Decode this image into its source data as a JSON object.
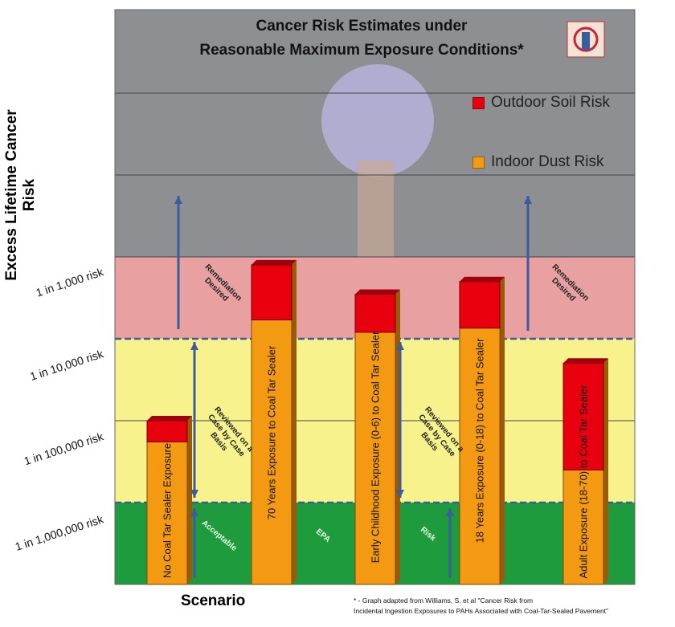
{
  "chart_data": {
    "type": "bar",
    "title_line1": "Cancer Risk Estimates under",
    "title_line2": "Reasonable Maximum Exposure Conditions*",
    "ylabel": "Excess Lifetime Cancer Risk",
    "xlabel": "Scenario",
    "y_scale": "log",
    "yticks": [
      "1 in 1,000 risk",
      "1 in 10,000 risk",
      "1 in 100,000 risk",
      "1 in 1,000,000 risk"
    ],
    "legend": [
      {
        "label": "Outdoor Soil Risk",
        "color": "#e8000e"
      },
      {
        "label": "Indoor Dust Risk",
        "color": "#f39a12"
      }
    ],
    "categories": [
      "No Coal Tar Sealer Exposure",
      "70 Years Exposure to Coal Tar Sealer",
      "Early Childhood Exposure (0-6) to Coal Tar Sealer",
      "18 Years Exposure (0-18) to Coal Tar Sealer",
      "Adult Exposure (18-70) to Coal Tar Sealer"
    ],
    "series": [
      {
        "name": "Indoor Dust Risk",
        "values": [
          5.5e-06,
          0.00017,
          0.00012,
          0.000135,
          2.5e-06
        ]
      },
      {
        "name": "Outdoor Soil Risk",
        "values": [
          4.5e-06,
          0.00063,
          0.00023,
          0.000365,
          4.8e-05
        ]
      }
    ],
    "ylim": [
      1e-07,
      0.1
    ],
    "zones": [
      {
        "name": "Acceptable",
        "color": "#1e9b3c"
      },
      {
        "name": "Reviewed on a Case by Case Basis",
        "color": "#f7f28c"
      },
      {
        "name": "Remediation Desired",
        "color": "#e8a0a0"
      }
    ],
    "zone_labels": {
      "remediation": "Remediation Desired",
      "reviewed": "Reviewed on a Case by Case Basis",
      "acceptable": "Acceptable",
      "epa": "EPA",
      "risk": "Risk"
    }
  },
  "footnote_line1": "* - Graph adapted from Williams, S. et al \"Cancer Risk from",
  "footnote_line2": "Incidental Ingestion Exposures to PAHs Associated with Coal-Tar-Sealed Pavement\""
}
